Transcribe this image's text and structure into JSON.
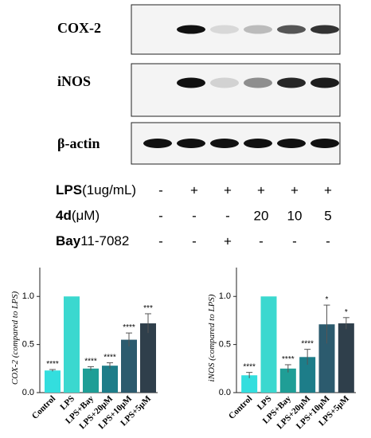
{
  "blot": {
    "proteins": [
      "COX-2",
      "iNOS",
      "β-actin"
    ],
    "treatments": [
      {
        "name": "LPS",
        "unit": "(1ug/mL)",
        "values": [
          "-",
          "+",
          "+",
          "+",
          "+",
          "+"
        ]
      },
      {
        "name": "4d",
        "unit": "(μM)",
        "values": [
          "-",
          "-",
          "-",
          "20",
          "10",
          "5"
        ]
      },
      {
        "name": "Bay",
        "unit": "11-7082",
        "values": [
          "-",
          "-",
          "+",
          "-",
          "-",
          "-"
        ]
      }
    ]
  },
  "chart_data": [
    {
      "type": "bar",
      "ylabel": "COX-2 (compared to LPS)",
      "categories": [
        "Control",
        "LPS",
        "LPS+Bay",
        "LPS+20μM",
        "LPS+10μM",
        "LPS+5μM"
      ],
      "values": [
        0.23,
        1.0,
        0.25,
        0.28,
        0.55,
        0.72
      ],
      "errors": [
        0.01,
        null,
        0.02,
        0.03,
        0.07,
        0.1
      ],
      "annotations": [
        "****",
        null,
        "****",
        "****",
        "****",
        "***"
      ],
      "colors": [
        "#33dede",
        "#3bd8cf",
        "#1f9e96",
        "#1d7d89",
        "#2c5b6e",
        "#2f3f4b"
      ],
      "ylim": [
        0,
        1.3
      ],
      "yticks": [
        {
          "value": 0,
          "label": "0.0"
        },
        {
          "value": 0.5,
          "label": "0.5"
        },
        {
          "value": 1,
          "label": "1.0"
        }
      ]
    },
    {
      "type": "bar",
      "ylabel": "iNOS (compared to LPS)",
      "categories": [
        "Control",
        "LPS",
        "LPS+Bay",
        "LPS+20μM",
        "LPS+10μM",
        "LPS+5μM"
      ],
      "values": [
        0.18,
        1.0,
        0.25,
        0.37,
        0.71,
        0.72
      ],
      "errors": [
        0.03,
        null,
        0.04,
        0.08,
        0.2,
        0.06
      ],
      "annotations": [
        "****",
        null,
        "****",
        "****",
        "*",
        "*"
      ],
      "colors": [
        "#33dede",
        "#3bd8cf",
        "#1f9e96",
        "#1d7d89",
        "#2c5b6e",
        "#2f3f4b"
      ],
      "ylim": [
        0,
        1.3
      ],
      "yticks": [
        {
          "value": 0,
          "label": "0.0"
        },
        {
          "value": 0.5,
          "label": "0.5"
        },
        {
          "value": 1,
          "label": "1.0"
        }
      ]
    }
  ]
}
